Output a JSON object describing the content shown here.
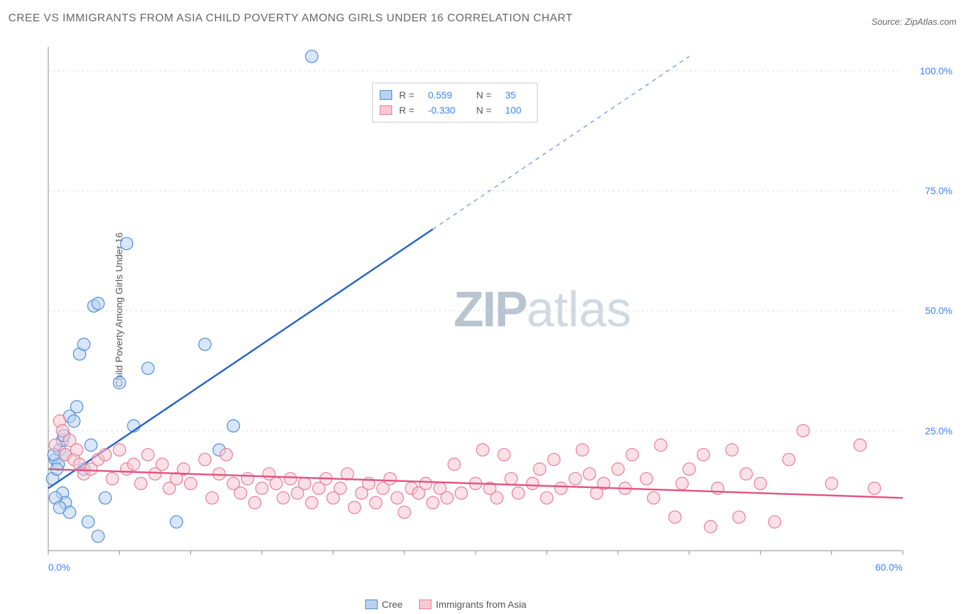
{
  "title": "CREE VS IMMIGRANTS FROM ASIA CHILD POVERTY AMONG GIRLS UNDER 16 CORRELATION CHART",
  "source": "Source: ZipAtlas.com",
  "y_axis_title": "Child Poverty Among Girls Under 16",
  "watermark_a": "ZIP",
  "watermark_b": "atlas",
  "chart": {
    "type": "scatter",
    "xlim": [
      0,
      60
    ],
    "ylim": [
      0,
      105
    ],
    "x_ticks": [
      0,
      60
    ],
    "x_tick_labels": [
      "0.0%",
      "60.0%"
    ],
    "x_minor_step": 5,
    "y_ticks": [
      25,
      50,
      75,
      100
    ],
    "y_tick_labels": [
      "25.0%",
      "50.0%",
      "75.0%",
      "100.0%"
    ],
    "grid_color": "#dcdcdc",
    "axis_color": "#888",
    "background_color": "#ffffff",
    "point_radius": 9,
    "point_opacity": 0.55,
    "line_width": 2.5,
    "series": [
      {
        "name": "Cree",
        "color": "#6fa8e8",
        "fill": "#b8d2f2",
        "stroke": "#4a8bd8",
        "line_color": "#2563c9",
        "r": "0.559",
        "n": "35",
        "reg": {
          "x1": 0,
          "y1": 13,
          "x2": 27,
          "y2": 67,
          "dashed_to_x": 45,
          "dashed_to_y": 103
        },
        "points": [
          [
            0.5,
            19
          ],
          [
            0.8,
            21
          ],
          [
            1,
            23
          ],
          [
            1.2,
            20
          ],
          [
            1.5,
            28
          ],
          [
            0.3,
            15
          ],
          [
            0.7,
            18
          ],
          [
            2,
            30
          ],
          [
            2.2,
            41
          ],
          [
            2.5,
            43
          ],
          [
            3,
            22
          ],
          [
            3.2,
            51
          ],
          [
            3.5,
            51.5
          ],
          [
            4,
            11
          ],
          [
            1,
            12
          ],
          [
            1.2,
            10
          ],
          [
            1.5,
            8
          ],
          [
            0.5,
            11
          ],
          [
            0.8,
            9
          ],
          [
            2.8,
            6
          ],
          [
            3.5,
            3
          ],
          [
            5,
            35
          ],
          [
            5.5,
            64
          ],
          [
            6,
            26
          ],
          [
            7,
            38
          ],
          [
            9,
            6
          ],
          [
            11,
            43
          ],
          [
            12,
            21
          ],
          [
            13,
            26
          ],
          [
            18.5,
            103
          ],
          [
            1.8,
            27
          ],
          [
            2.5,
            17
          ],
          [
            0.4,
            20
          ],
          [
            0.6,
            17
          ],
          [
            1.1,
            24
          ]
        ]
      },
      {
        "name": "Immigrants from Asia",
        "color": "#f2a0b5",
        "fill": "#f8c8d4",
        "stroke": "#e87a97",
        "line_color": "#e05580",
        "r": "-0.330",
        "n": "100",
        "reg": {
          "x1": 0,
          "y1": 17,
          "x2": 60,
          "y2": 11
        },
        "points": [
          [
            0.5,
            22
          ],
          [
            0.8,
            27
          ],
          [
            1,
            25
          ],
          [
            1.2,
            20
          ],
          [
            1.5,
            23
          ],
          [
            1.8,
            19
          ],
          [
            2,
            21
          ],
          [
            2.2,
            18
          ],
          [
            2.5,
            16
          ],
          [
            3,
            17
          ],
          [
            3.5,
            19
          ],
          [
            4,
            20
          ],
          [
            4.5,
            15
          ],
          [
            5,
            21
          ],
          [
            5.5,
            17
          ],
          [
            6,
            18
          ],
          [
            6.5,
            14
          ],
          [
            7,
            20
          ],
          [
            7.5,
            16
          ],
          [
            8,
            18
          ],
          [
            8.5,
            13
          ],
          [
            9,
            15
          ],
          [
            9.5,
            17
          ],
          [
            10,
            14
          ],
          [
            11,
            19
          ],
          [
            11.5,
            11
          ],
          [
            12,
            16
          ],
          [
            12.5,
            20
          ],
          [
            13,
            14
          ],
          [
            13.5,
            12
          ],
          [
            14,
            15
          ],
          [
            14.5,
            10
          ],
          [
            15,
            13
          ],
          [
            15.5,
            16
          ],
          [
            16,
            14
          ],
          [
            16.5,
            11
          ],
          [
            17,
            15
          ],
          [
            17.5,
            12
          ],
          [
            18,
            14
          ],
          [
            18.5,
            10
          ],
          [
            19,
            13
          ],
          [
            19.5,
            15
          ],
          [
            20,
            11
          ],
          [
            20.5,
            13
          ],
          [
            21,
            16
          ],
          [
            21.5,
            9
          ],
          [
            22,
            12
          ],
          [
            22.5,
            14
          ],
          [
            23,
            10
          ],
          [
            23.5,
            13
          ],
          [
            24,
            15
          ],
          [
            24.5,
            11
          ],
          [
            25,
            8
          ],
          [
            25.5,
            13
          ],
          [
            26,
            12
          ],
          [
            26.5,
            14
          ],
          [
            27,
            10
          ],
          [
            27.5,
            13
          ],
          [
            28,
            11
          ],
          [
            28.5,
            18
          ],
          [
            29,
            12
          ],
          [
            30,
            14
          ],
          [
            30.5,
            21
          ],
          [
            31,
            13
          ],
          [
            31.5,
            11
          ],
          [
            32,
            20
          ],
          [
            32.5,
            15
          ],
          [
            33,
            12
          ],
          [
            34,
            14
          ],
          [
            34.5,
            17
          ],
          [
            35,
            11
          ],
          [
            35.5,
            19
          ],
          [
            36,
            13
          ],
          [
            37,
            15
          ],
          [
            37.5,
            21
          ],
          [
            38,
            16
          ],
          [
            38.5,
            12
          ],
          [
            39,
            14
          ],
          [
            40,
            17
          ],
          [
            40.5,
            13
          ],
          [
            41,
            20
          ],
          [
            42,
            15
          ],
          [
            42.5,
            11
          ],
          [
            43,
            22
          ],
          [
            44,
            7
          ],
          [
            44.5,
            14
          ],
          [
            45,
            17
          ],
          [
            46,
            20
          ],
          [
            46.5,
            5
          ],
          [
            47,
            13
          ],
          [
            48,
            21
          ],
          [
            48.5,
            7
          ],
          [
            49,
            16
          ],
          [
            50,
            14
          ],
          [
            51,
            6
          ],
          [
            52,
            19
          ],
          [
            53,
            25
          ],
          [
            55,
            14
          ],
          [
            57,
            22
          ],
          [
            58,
            13
          ]
        ]
      }
    ]
  },
  "bottom_legend": [
    {
      "label": "Cree",
      "fill": "#b8d2f2",
      "stroke": "#4a8bd8"
    },
    {
      "label": "Immigrants from Asia",
      "fill": "#f8c8d4",
      "stroke": "#e87a97"
    }
  ]
}
